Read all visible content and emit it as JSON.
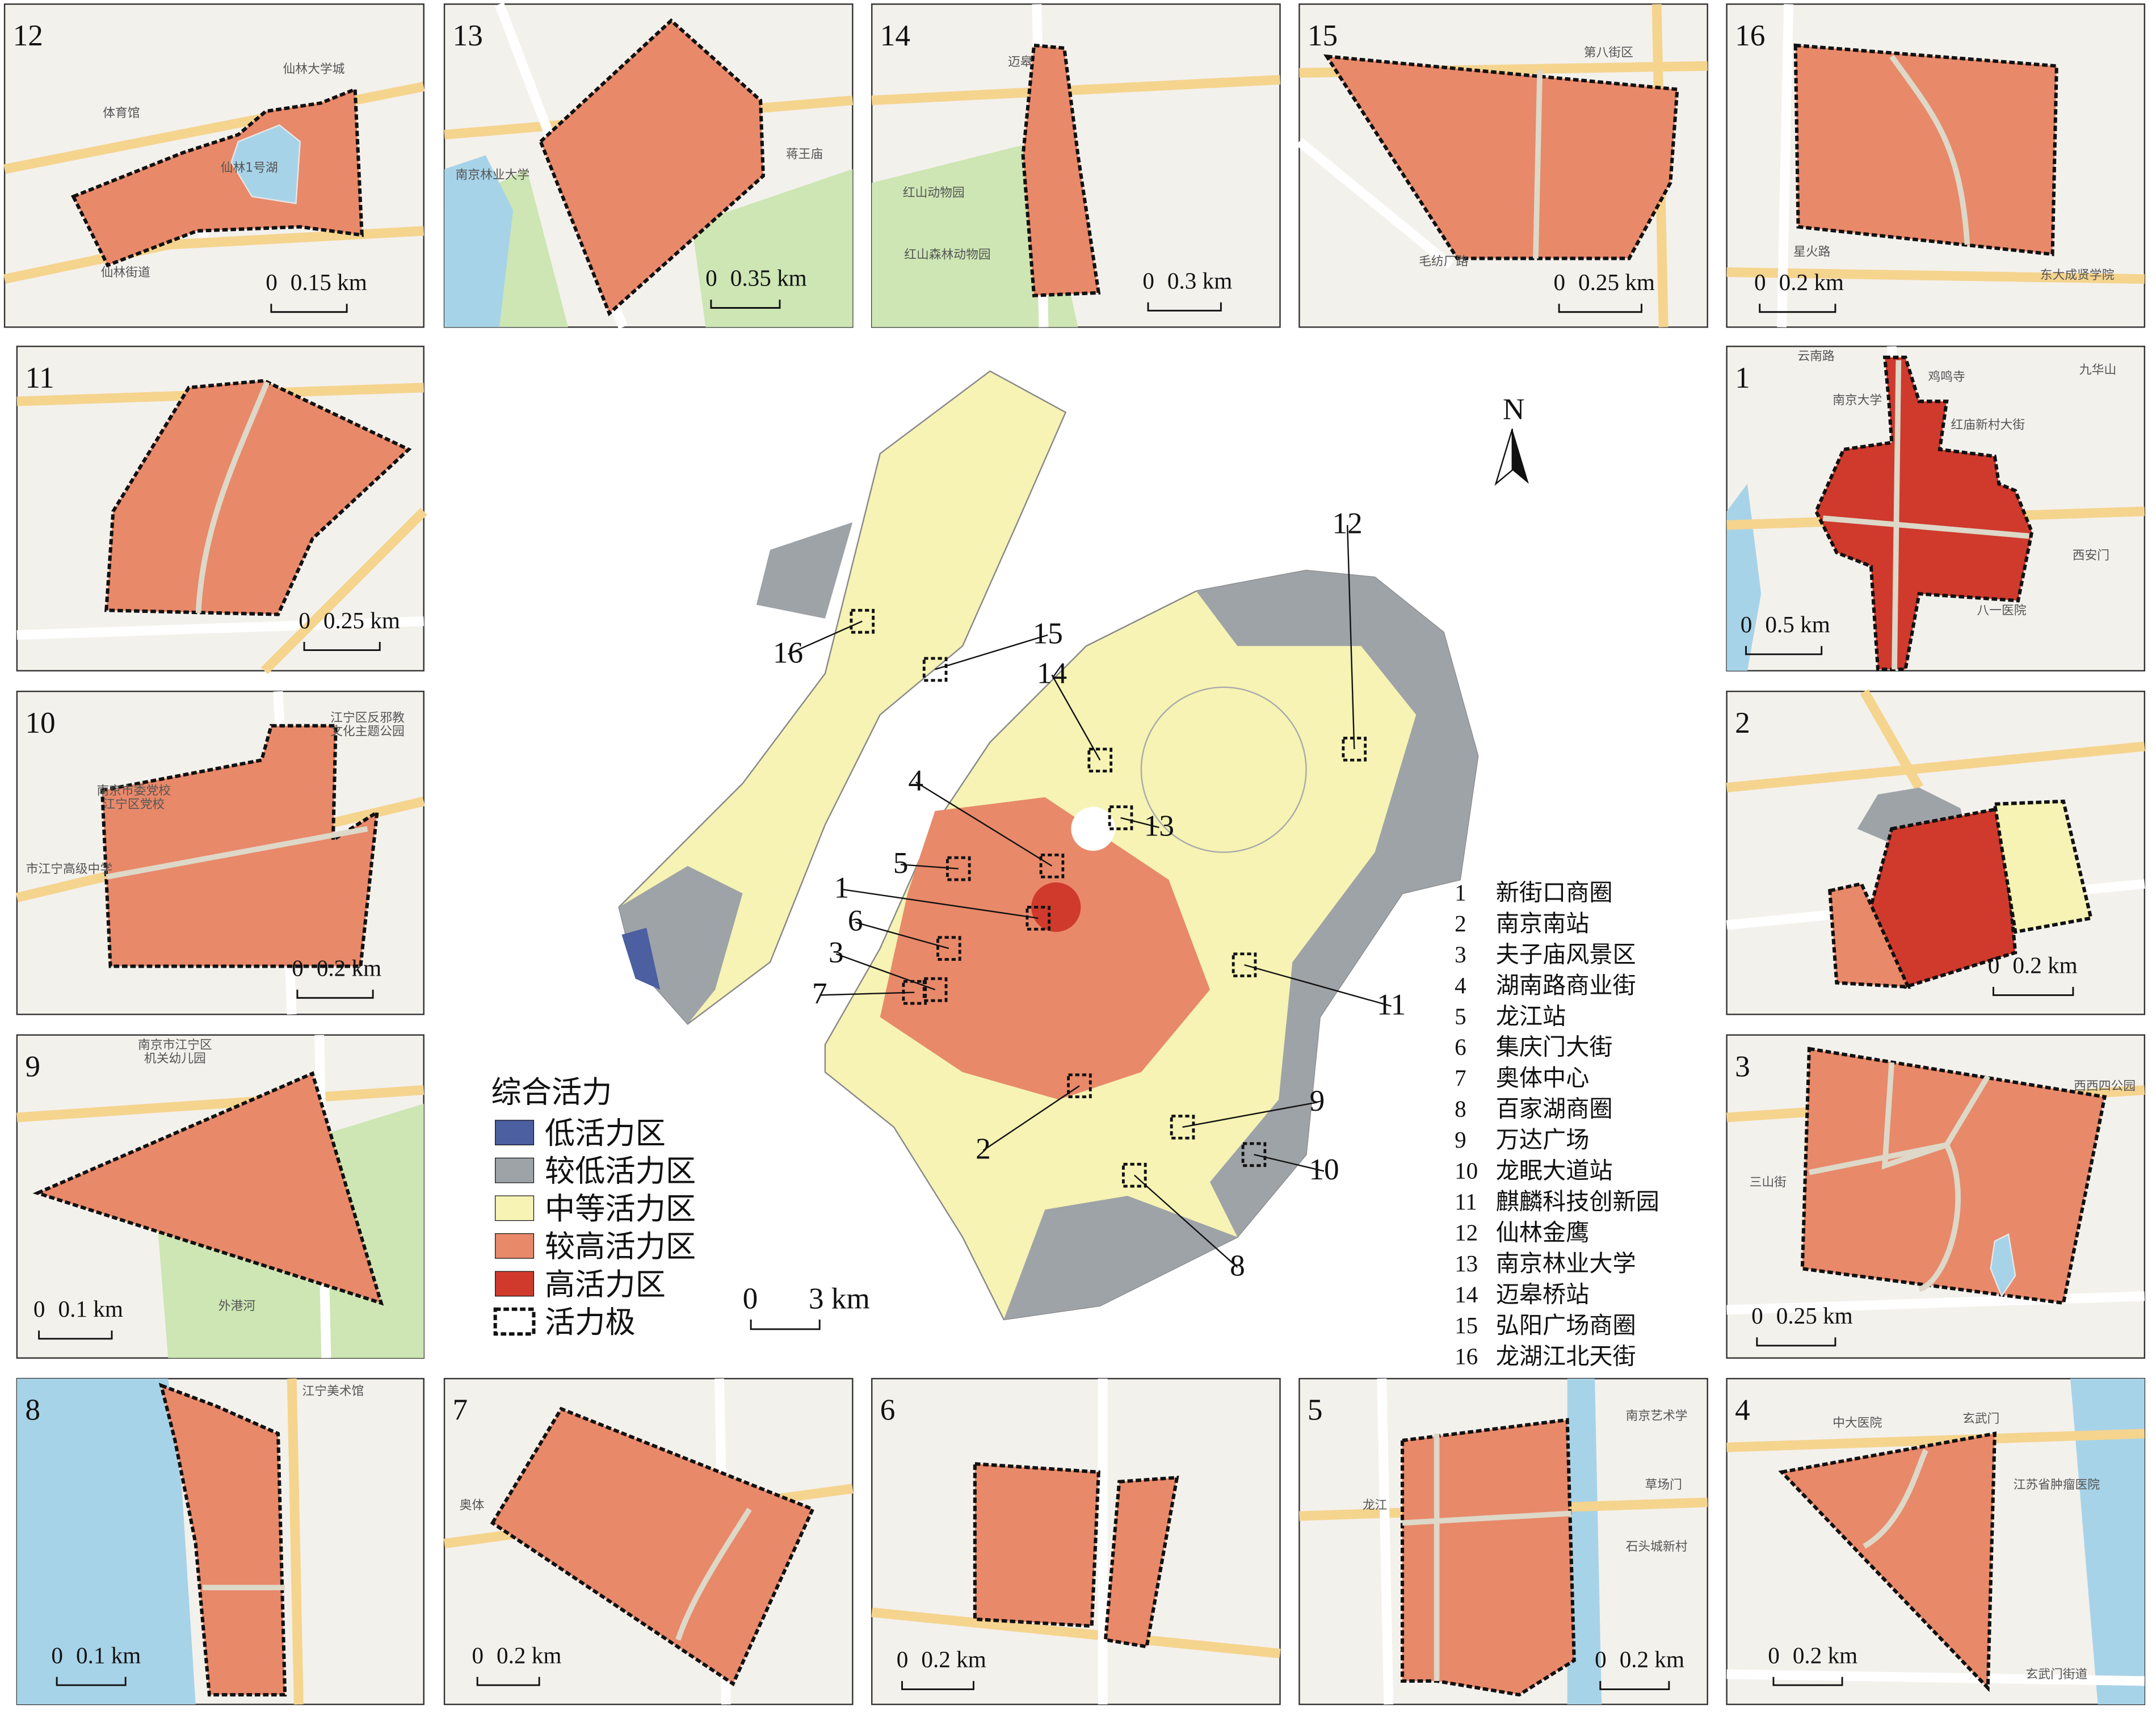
{
  "panels": [
    {
      "id": "12",
      "scale": [
        "0",
        "0.15 km"
      ],
      "labels": [
        "体育馆",
        "仙林大学城",
        "仙林1号湖",
        "仙林街道"
      ]
    },
    {
      "id": "13",
      "scale": [
        "0",
        "0.35 km"
      ],
      "labels": [
        "南京林业大学",
        "蒋王庙"
      ]
    },
    {
      "id": "14",
      "scale": [
        "0",
        "0.3 km"
      ],
      "labels": [
        "迈皋",
        "红山动物园",
        "红山森林动物园"
      ]
    },
    {
      "id": "15",
      "scale": [
        "0",
        "0.25 km"
      ],
      "labels": [
        "第八街区",
        "毛纺厂路"
      ]
    },
    {
      "id": "16",
      "scale": [
        "0",
        "0.2 km"
      ],
      "labels": [
        "星火路",
        "东大成贤学院"
      ]
    },
    {
      "id": "11",
      "scale": [
        "0",
        "0.25 km"
      ],
      "labels": []
    },
    {
      "id": "10",
      "scale": [
        "0",
        "0.2 km"
      ],
      "labels": [
        "南京市委党校",
        "江宁区党校",
        "江宁区反邪教",
        "文化主题公园",
        "市江宁高级中学"
      ]
    },
    {
      "id": "9",
      "scale": [
        "0",
        "0.1 km"
      ],
      "labels": [
        "南京市江宁区",
        "机关幼儿园",
        "外港河"
      ]
    },
    {
      "id": "1",
      "scale": [
        "0",
        "0.5 km"
      ],
      "labels": [
        "云南路",
        "鸡鸣寺",
        "九华山",
        "南京大学",
        "红庙新村大街",
        "西安门",
        "八一医院"
      ]
    },
    {
      "id": "2",
      "scale": [
        "0",
        "0.2 km"
      ],
      "labels": []
    },
    {
      "id": "3",
      "scale": [
        "0",
        "0.25 km"
      ],
      "labels": [
        "西西四公园",
        "三山街"
      ]
    },
    {
      "id": "8",
      "scale": [
        "0",
        "0.1 km"
      ],
      "labels": [
        "江宁美术馆"
      ]
    },
    {
      "id": "7",
      "scale": [
        "0",
        "0.2 km"
      ],
      "labels": [
        "奥体"
      ]
    },
    {
      "id": "6",
      "scale": [
        "0",
        "0.2 km"
      ],
      "labels": []
    },
    {
      "id": "5",
      "scale": [
        "0",
        "0.2 km"
      ],
      "labels": [
        "南京艺术学",
        "草场门",
        "石头城新村",
        "龙江"
      ]
    },
    {
      "id": "4",
      "scale": [
        "0",
        "0.2 km"
      ],
      "labels": [
        "中大医院",
        "玄武门",
        "江苏省肿瘤医院",
        "玄武门街道"
      ]
    }
  ],
  "main_map": {
    "north": "N",
    "scale": [
      "0",
      "3 km"
    ]
  },
  "legend": {
    "title": "综合活力",
    "items": [
      "低活力区",
      "较低活力区",
      "中等活力区",
      "较高活力区",
      "高活力区",
      "活力极"
    ]
  },
  "key": [
    {
      "num": "1",
      "name": "新街口商圈"
    },
    {
      "num": "2",
      "name": "南京南站"
    },
    {
      "num": "3",
      "name": "夫子庙风景区"
    },
    {
      "num": "4",
      "name": "湖南路商业街"
    },
    {
      "num": "5",
      "name": "龙江站"
    },
    {
      "num": "6",
      "name": "集庆门大街"
    },
    {
      "num": "7",
      "name": "奥体中心"
    },
    {
      "num": "8",
      "name": "百家湖商圈"
    },
    {
      "num": "9",
      "name": "万达广场"
    },
    {
      "num": "10",
      "name": "龙眠大道站"
    },
    {
      "num": "11",
      "name": "麒麟科技创新园"
    },
    {
      "num": "12",
      "name": "仙林金鹰"
    },
    {
      "num": "13",
      "name": "南京林业大学"
    },
    {
      "num": "14",
      "name": "迈皋桥站"
    },
    {
      "num": "15",
      "name": "弘阳广场商圈"
    },
    {
      "num": "16",
      "name": "龙湖江北天街"
    }
  ]
}
